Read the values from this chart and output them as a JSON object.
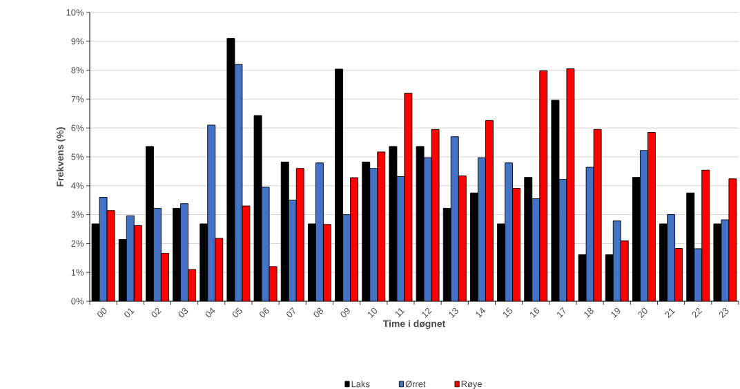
{
  "chart_data": {
    "type": "bar",
    "xlabel": "Time i døgnet",
    "ylabel": "Frekvens (%)",
    "categories": [
      "00",
      "01",
      "02",
      "03",
      "04",
      "05",
      "06",
      "07",
      "08",
      "09",
      "10",
      "11",
      "12",
      "13",
      "14",
      "15",
      "16",
      "17",
      "18",
      "19",
      "20",
      "21",
      "22",
      "23"
    ],
    "series": [
      {
        "name": "Laks",
        "color": "#000000",
        "values": [
          2.68,
          2.14,
          5.36,
          3.22,
          2.68,
          9.1,
          6.43,
          4.82,
          2.68,
          8.04,
          4.82,
          5.36,
          5.36,
          3.22,
          3.75,
          2.68,
          4.29,
          6.96,
          1.61,
          1.61,
          4.29,
          2.68,
          3.75,
          2.68
        ]
      },
      {
        "name": "Ørret",
        "color": "#4472c4",
        "values": [
          3.6,
          2.96,
          3.22,
          3.38,
          6.1,
          8.2,
          3.95,
          3.5,
          4.79,
          3.0,
          4.6,
          4.32,
          4.97,
          5.7,
          4.97,
          4.79,
          3.55,
          4.22,
          4.64,
          2.78,
          5.22,
          3.0,
          1.82,
          2.82
        ]
      },
      {
        "name": "Røye",
        "color": "#ff0000",
        "values": [
          3.14,
          2.62,
          1.66,
          1.1,
          2.18,
          3.3,
          1.2,
          4.6,
          2.66,
          4.28,
          5.17,
          7.2,
          5.95,
          4.34,
          6.26,
          3.91,
          7.98,
          8.05,
          5.95,
          2.09,
          5.85,
          1.83,
          4.54,
          4.24
        ]
      }
    ],
    "ylim": [
      0,
      10
    ],
    "yticks": [
      {
        "value": 0,
        "label": "0%"
      },
      {
        "value": 1,
        "label": "1%"
      },
      {
        "value": 2,
        "label": "2%"
      },
      {
        "value": 3,
        "label": "3%"
      },
      {
        "value": 4,
        "label": "4%"
      },
      {
        "value": 5,
        "label": "5%"
      },
      {
        "value": 6,
        "label": "6%"
      },
      {
        "value": 7,
        "label": "7%"
      },
      {
        "value": 8,
        "label": "8%"
      },
      {
        "value": 9,
        "label": "9%"
      },
      {
        "value": 10,
        "label": "10%"
      }
    ],
    "grid": "y",
    "legend": "bottom"
  }
}
